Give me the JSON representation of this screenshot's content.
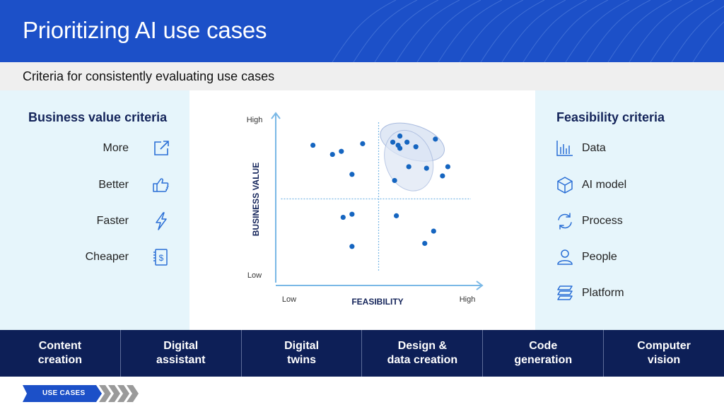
{
  "slide": {
    "title": "Prioritizing AI use cases",
    "subtitle": "Criteria for consistently evaluating use cases"
  },
  "business_value": {
    "heading": "Business value criteria",
    "items": [
      {
        "label": "More",
        "icon": "external-link-icon"
      },
      {
        "label": "Better",
        "icon": "thumbs-up-icon"
      },
      {
        "label": "Faster",
        "icon": "lightning-icon"
      },
      {
        "label": "Cheaper",
        "icon": "invoice-dollar-icon"
      }
    ]
  },
  "feasibility": {
    "heading": "Feasibility criteria",
    "items": [
      {
        "label": "Data",
        "icon": "bar-chart-icon"
      },
      {
        "label": "AI model",
        "icon": "cube-icon"
      },
      {
        "label": "Process",
        "icon": "refresh-cycle-icon"
      },
      {
        "label": "People",
        "icon": "person-icon"
      },
      {
        "label": "Platform",
        "icon": "layers-icon"
      }
    ]
  },
  "chart_data": {
    "type": "scatter",
    "xlabel": "FEASIBILITY",
    "ylabel": "BUSINESS VALUE",
    "x_tick_labels": [
      "Low",
      "High"
    ],
    "y_tick_labels": [
      "Low",
      "High"
    ],
    "xlim": [
      0,
      100
    ],
    "ylim": [
      0,
      100
    ],
    "quadrant_split": {
      "x": 50,
      "y": 50
    },
    "grid": false,
    "points": [
      {
        "x": 13,
        "y": 85
      },
      {
        "x": 24,
        "y": 79
      },
      {
        "x": 29,
        "y": 81
      },
      {
        "x": 41,
        "y": 86
      },
      {
        "x": 35,
        "y": 66
      },
      {
        "x": 30,
        "y": 38
      },
      {
        "x": 35,
        "y": 40
      },
      {
        "x": 35,
        "y": 19
      },
      {
        "x": 62,
        "y": 91
      },
      {
        "x": 58,
        "y": 87
      },
      {
        "x": 61,
        "y": 85
      },
      {
        "x": 66,
        "y": 87
      },
      {
        "x": 71,
        "y": 84
      },
      {
        "x": 82,
        "y": 89
      },
      {
        "x": 62,
        "y": 83
      },
      {
        "x": 67,
        "y": 71
      },
      {
        "x": 77,
        "y": 70
      },
      {
        "x": 59,
        "y": 62
      },
      {
        "x": 89,
        "y": 71
      },
      {
        "x": 86,
        "y": 65
      },
      {
        "x": 60,
        "y": 39
      },
      {
        "x": 81,
        "y": 29
      },
      {
        "x": 76,
        "y": 21
      }
    ],
    "highlight_regions": 2,
    "colors": {
      "points": "#1565c0",
      "axes": "#7ab8e6",
      "highlight": "#dde6f5"
    }
  },
  "footer": {
    "categories": [
      {
        "line1": "Content",
        "line2": "creation"
      },
      {
        "line1": "Digital",
        "line2": "assistant"
      },
      {
        "line1": "Digital",
        "line2": "twins"
      },
      {
        "line1": "Design &",
        "line2": "data creation"
      },
      {
        "line1": "Code",
        "line2": "generation"
      },
      {
        "line1": "Computer",
        "line2": "vision"
      }
    ]
  },
  "breadcrumb": {
    "label": "USE CASES"
  },
  "theme": {
    "primary": "#1c50c8",
    "navy": "#0d1f57",
    "icon": "#2a6fd6",
    "panel": "#e6f5fb"
  }
}
